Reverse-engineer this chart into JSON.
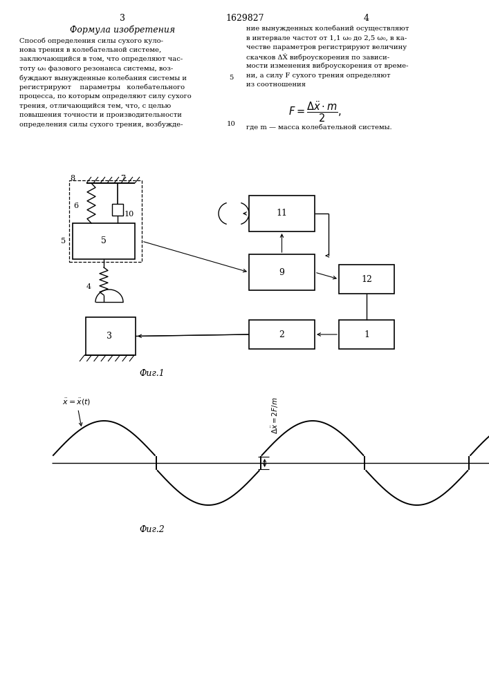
{
  "page_title": "1629827",
  "page_left": "3",
  "page_right": "4",
  "formula_title": "Формула изобретения",
  "left_text": [
    "Способ определения силы сухого куло-",
    "нова трения в колебательной системе,",
    "заключающийся в том, что определяют час-",
    "тоту ω₀ фазового резонанса системы, воз-",
    "буждают вынужденные колебания системы и",
    "регистрируют    параметры   колебательного",
    "процесса, по которым определяют силу сухого",
    "трения, отличающийся тем, что, с целью",
    "повышения точности и производительности",
    "определения силы сухого трения, возбужде-"
  ],
  "right_text": [
    "ние вынужденных колебаний осуществляют",
    "в интервале частот от 1,1 ω₀ до 2,5 ω₀, в ка-",
    "честве параметров регистрируют величину",
    "скачков ΔẊ виброускорения по зависи-",
    "мости изменения виброускорения от време-",
    "ни, а силу F сухого трения определяют",
    "из соотношения"
  ],
  "where_text": "где m — масса колебательной системы.",
  "fig1_label": "Фиг.1",
  "fig2_label": "Фиг.2",
  "bg_color": "#ffffff",
  "lc": "#000000",
  "tc": "#000000"
}
